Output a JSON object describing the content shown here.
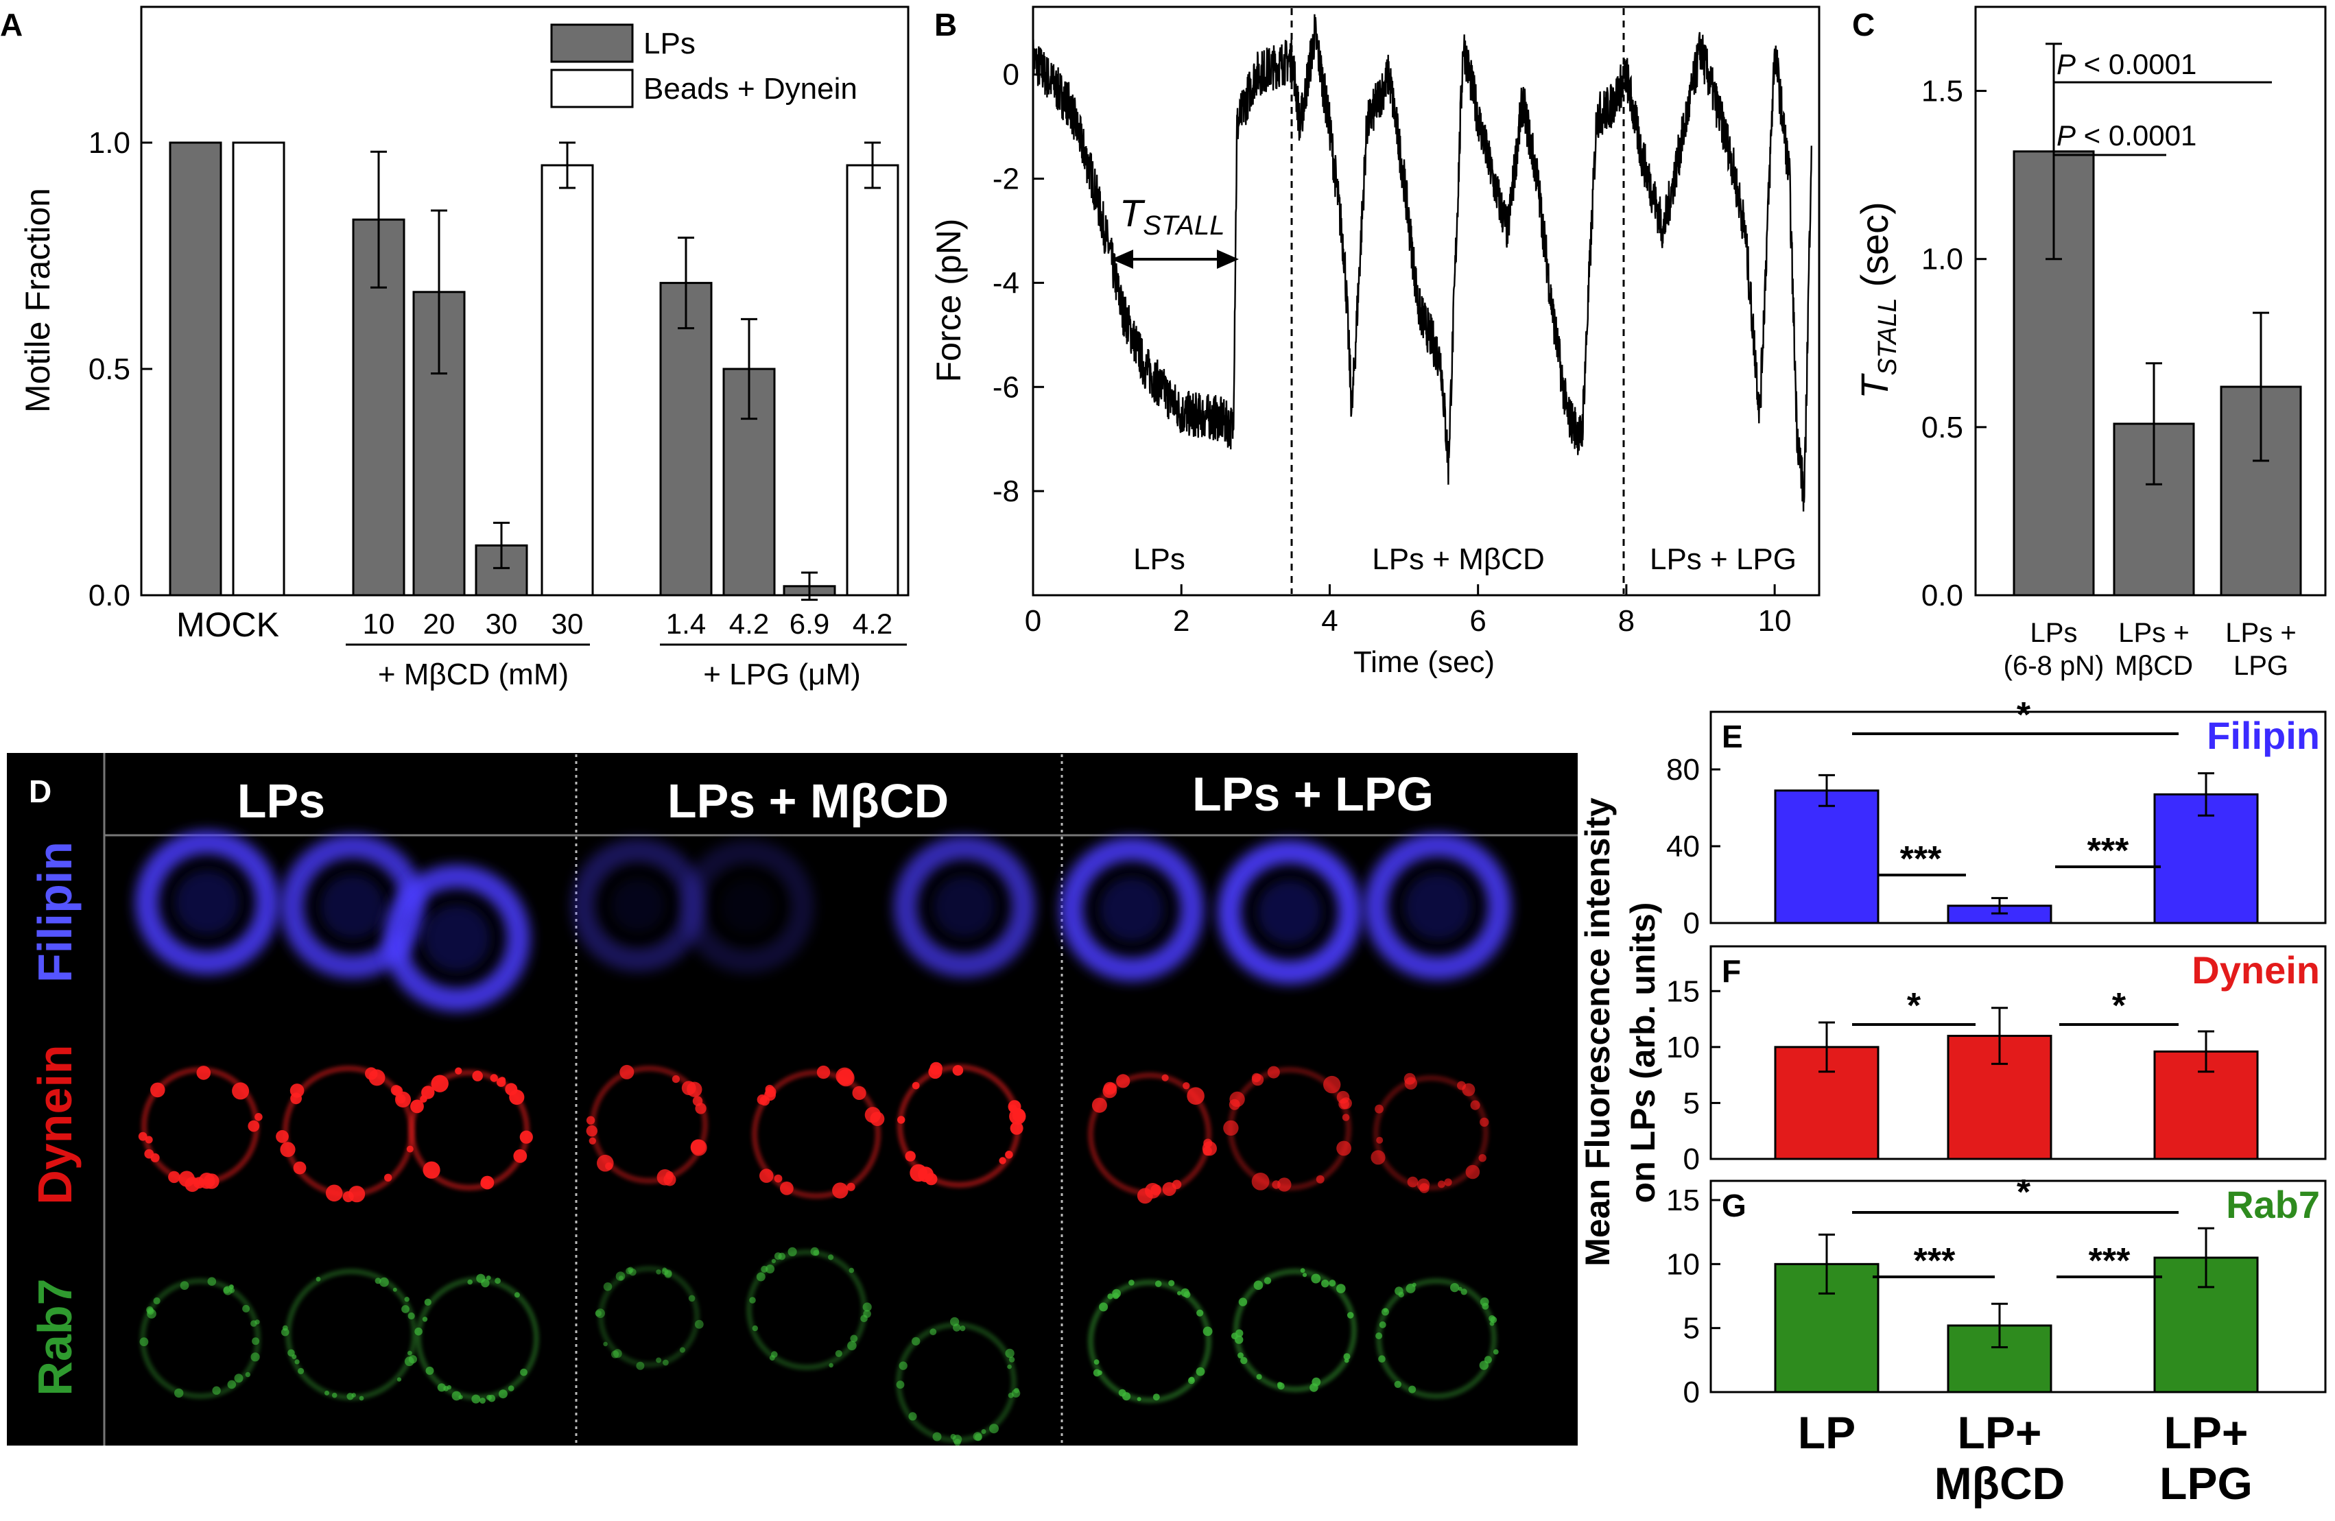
{
  "panels": {
    "A": {
      "letter": "A",
      "legend": [
        "LPs",
        "Beads + Dynein"
      ],
      "ylabel": "Motile Fraction",
      "yticks": [
        "0.0",
        "0.5",
        "1.0"
      ],
      "groups": {
        "mock": "MOCK",
        "mbcd": "+ MβCD (mM)",
        "lpg": "+ LPG (μM)"
      },
      "categories": [
        "10",
        "20",
        "30",
        "30",
        "1.4",
        "4.2",
        "6.9",
        "4.2"
      ]
    },
    "B": {
      "letter": "B",
      "ylabel": "Force (pN)",
      "xlabel": "Time (sec)",
      "yticks": [
        "0",
        "-2",
        "-4",
        "-6",
        "-8"
      ],
      "xticks": [
        "0",
        "2",
        "4",
        "6",
        "8",
        "10"
      ],
      "annotation": "T",
      "annotation_sub": "STALL",
      "regions": [
        "LPs",
        "LPs + MβCD",
        "LPs + LPG"
      ]
    },
    "C": {
      "letter": "C",
      "ylabel": "T",
      "ylabel_sub": "STALL",
      "ylabel_unit": " (sec)",
      "yticks": [
        "0.0",
        "0.5",
        "1.0",
        "1.5"
      ],
      "categories": [
        [
          "LPs",
          "(6-8 pN)"
        ],
        [
          "LPs +",
          "MβCD"
        ],
        [
          "LPs +",
          "LPG"
        ]
      ],
      "pvalues": [
        "P < 0.0001",
        "P < 0.0001"
      ]
    },
    "D": {
      "letter": "D",
      "columns": [
        "LPs",
        "LPs + MβCD",
        "LPs + LPG"
      ],
      "rows": [
        "Filipin",
        "Dynein",
        "Rab7"
      ]
    },
    "EFG": {
      "ylabel_lines": [
        "Mean  Fluorescence intensity",
        "on   LPs  (arb. units)"
      ],
      "categories": [
        [
          "LP"
        ],
        [
          "LP+",
          "MβCD"
        ],
        [
          "LP+",
          "LPG"
        ]
      ],
      "E": {
        "letter": "E",
        "label": "Filipin",
        "yticks": [
          "0",
          "40",
          "80"
        ],
        "stars": [
          "*",
          "***",
          "***"
        ]
      },
      "F": {
        "letter": "F",
        "label": "Dynein",
        "yticks": [
          "0",
          "5",
          "10",
          "15"
        ],
        "stars": [
          "*",
          "*"
        ]
      },
      "G": {
        "letter": "G",
        "label": "Rab7",
        "yticks": [
          "0",
          "5",
          "10",
          "15"
        ],
        "stars": [
          "*",
          "***",
          "***"
        ]
      }
    }
  },
  "colors": {
    "filipin": "#3b2bff",
    "dynein": "#e31b1b",
    "rab7": "#2e8b1e",
    "bar_gray": "#6e6e6e"
  },
  "chart_data": [
    {
      "panel": "A",
      "type": "bar",
      "ylabel": "Motile Fraction",
      "ylim": [
        0,
        1.3
      ],
      "categories": [
        "MOCK",
        "10",
        "20",
        "30",
        "30",
        "1.4",
        "4.2",
        "6.9",
        "4.2"
      ],
      "series": [
        {
          "name": "LPs",
          "values": [
            1.0,
            0.83,
            0.67,
            0.11,
            null,
            0.69,
            0.5,
            0.02,
            null
          ],
          "errors": [
            0,
            0.15,
            0.18,
            0.05,
            null,
            0.1,
            0.11,
            0.03,
            null
          ]
        },
        {
          "name": "Beads + Dynein",
          "values": [
            1.0,
            null,
            null,
            null,
            0.95,
            null,
            null,
            null,
            0.95
          ],
          "errors": [
            0,
            null,
            null,
            null,
            0.05,
            null,
            null,
            null,
            0.05
          ]
        }
      ],
      "legend": "top-right"
    },
    {
      "panel": "B",
      "type": "line",
      "xlabel": "Time (sec)",
      "ylabel": "Force (pN)",
      "xlim": [
        0,
        10.6
      ],
      "ylim": [
        -10,
        1.3
      ],
      "x": [
        0,
        0.5,
        0.8,
        1.0,
        1.2,
        1.5,
        2.0,
        2.5,
        2.7,
        2.75,
        3.0,
        3.5,
        3.6,
        3.8,
        4.0,
        4.2,
        4.3,
        4.5,
        4.8,
        5.0,
        5.2,
        5.5,
        5.6,
        5.8,
        6.0,
        6.2,
        6.4,
        6.6,
        6.8,
        7.0,
        7.2,
        7.4,
        7.6,
        7.8,
        8.0,
        8.2,
        8.5,
        9.0,
        9.4,
        9.6,
        9.8,
        10.0,
        10.2,
        10.3,
        10.4,
        10.5
      ],
      "y": [
        0.3,
        -0.6,
        -2.0,
        -3.2,
        -4.5,
        -5.6,
        -6.5,
        -6.6,
        -6.8,
        -1.0,
        0.0,
        0.3,
        -1.0,
        0.8,
        -1.0,
        -3.5,
        -6.5,
        -1.0,
        0.0,
        -2.0,
        -4.5,
        -5.5,
        -7.5,
        0.6,
        -0.8,
        -2.0,
        -3.0,
        -0.5,
        -2.0,
        -4.5,
        -6.5,
        -7.0,
        -0.8,
        -0.6,
        0.0,
        -1.5,
        -3.0,
        0.5,
        -1.5,
        -3.0,
        -6.5,
        0.5,
        -2.0,
        -6.8,
        -8.2,
        -1.0
      ],
      "annotations": [
        "T_STALL",
        "LPs",
        "LPs + MβCD",
        "LPs + LPG"
      ]
    },
    {
      "panel": "C",
      "type": "bar",
      "categories": [
        "LPs (6-8 pN)",
        "LPs + MβCD",
        "LPs + LPG"
      ],
      "values": [
        1.32,
        0.51,
        0.62
      ],
      "errors": [
        0.32,
        0.18,
        0.22
      ],
      "ylim": [
        0,
        1.75
      ],
      "ylabel": "T_STALL (sec)",
      "annotations": [
        "P < 0.0001",
        "P < 0.0001"
      ]
    },
    {
      "panel": "E",
      "type": "bar",
      "categories": [
        "LP",
        "LP+ MβCD",
        "LP+ LPG"
      ],
      "values": [
        69,
        9,
        67
      ],
      "errors": [
        8,
        4,
        11
      ],
      "ylim": [
        0,
        110
      ],
      "series_label": "Filipin"
    },
    {
      "panel": "F",
      "type": "bar",
      "categories": [
        "LP",
        "LP+ MβCD",
        "LP+ LPG"
      ],
      "values": [
        10.0,
        11.0,
        9.6
      ],
      "errors": [
        2.2,
        2.5,
        1.8
      ],
      "ylim": [
        0,
        19
      ],
      "series_label": "Dynein"
    },
    {
      "panel": "G",
      "type": "bar",
      "categories": [
        "LP",
        "LP+ MβCD",
        "LP+ LPG"
      ],
      "values": [
        10.0,
        5.2,
        10.5
      ],
      "errors": [
        2.3,
        1.7,
        2.3
      ],
      "ylim": [
        0,
        16.5
      ],
      "series_label": "Rab7"
    }
  ]
}
